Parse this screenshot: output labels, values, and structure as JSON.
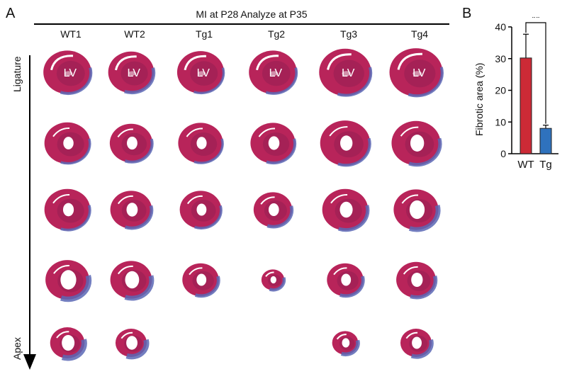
{
  "panels": {
    "a": "A",
    "b": "B"
  },
  "header": {
    "title": "MI at P28 Analyze at P35"
  },
  "columns": [
    "WT1",
    "WT2",
    "Tg1",
    "Tg2",
    "Tg3",
    "Tg4"
  ],
  "axis_labels": {
    "top": "Ligature",
    "bottom": "Apex"
  },
  "lv_label": "LV",
  "colors": {
    "tissue": "#b8245a",
    "tissue_dark": "#8e1e52",
    "fibrosis": "#5b67b5",
    "wt_bar": "#cc2a36",
    "tg_bar": "#2f72bd"
  },
  "sections": [
    [
      {
        "s": 0.92,
        "f": 0.3,
        "lv": true
      },
      {
        "s": 0.88,
        "f": 0.4,
        "lv": true
      },
      {
        "s": 0.9,
        "f": 0.2,
        "lv": true
      },
      {
        "s": 0.92,
        "f": 0.25,
        "lv": true
      },
      {
        "s": 1.0,
        "f": 0.3,
        "lv": true
      },
      {
        "s": 1.02,
        "f": 0.3,
        "lv": true
      }
    ],
    [
      {
        "s": 0.88,
        "f": 0.2
      },
      {
        "s": 0.82,
        "f": 0.3
      },
      {
        "s": 0.86,
        "f": 0.2
      },
      {
        "s": 0.86,
        "f": 0.3
      },
      {
        "s": 0.96,
        "f": 0.3
      },
      {
        "s": 0.94,
        "f": 0.45
      }
    ],
    [
      {
        "s": 0.88,
        "f": 0.25
      },
      {
        "s": 0.8,
        "f": 0.4
      },
      {
        "s": 0.8,
        "f": 0.25
      },
      {
        "s": 0.74,
        "f": 0.4
      },
      {
        "s": 0.88,
        "f": 0.45
      },
      {
        "s": 0.86,
        "f": 0.7
      }
    ],
    [
      {
        "s": 0.84,
        "f": 0.8
      },
      {
        "s": 0.8,
        "f": 0.7
      },
      {
        "s": 0.7,
        "f": 0.4
      },
      {
        "s": 0.44,
        "f": 0.35
      },
      {
        "s": 0.7,
        "f": 0.4
      },
      {
        "s": 0.76,
        "f": 0.5
      }
    ],
    [
      {
        "s": 0.66,
        "f": 0.85
      },
      {
        "s": 0.6,
        "f": 0.8
      },
      null,
      null,
      {
        "s": 0.5,
        "f": 0.5
      },
      {
        "s": 0.6,
        "f": 0.6
      }
    ]
  ],
  "chart_data": {
    "type": "bar",
    "categories": [
      "WT",
      "Tg"
    ],
    "values": [
      30.2,
      8.0
    ],
    "errors": [
      7.5,
      1.0
    ],
    "ylabel": "Fibrotic area (%)",
    "ylim": [
      0,
      40
    ],
    "yticks": [
      0,
      10,
      20,
      30,
      40
    ],
    "significance": "**"
  }
}
